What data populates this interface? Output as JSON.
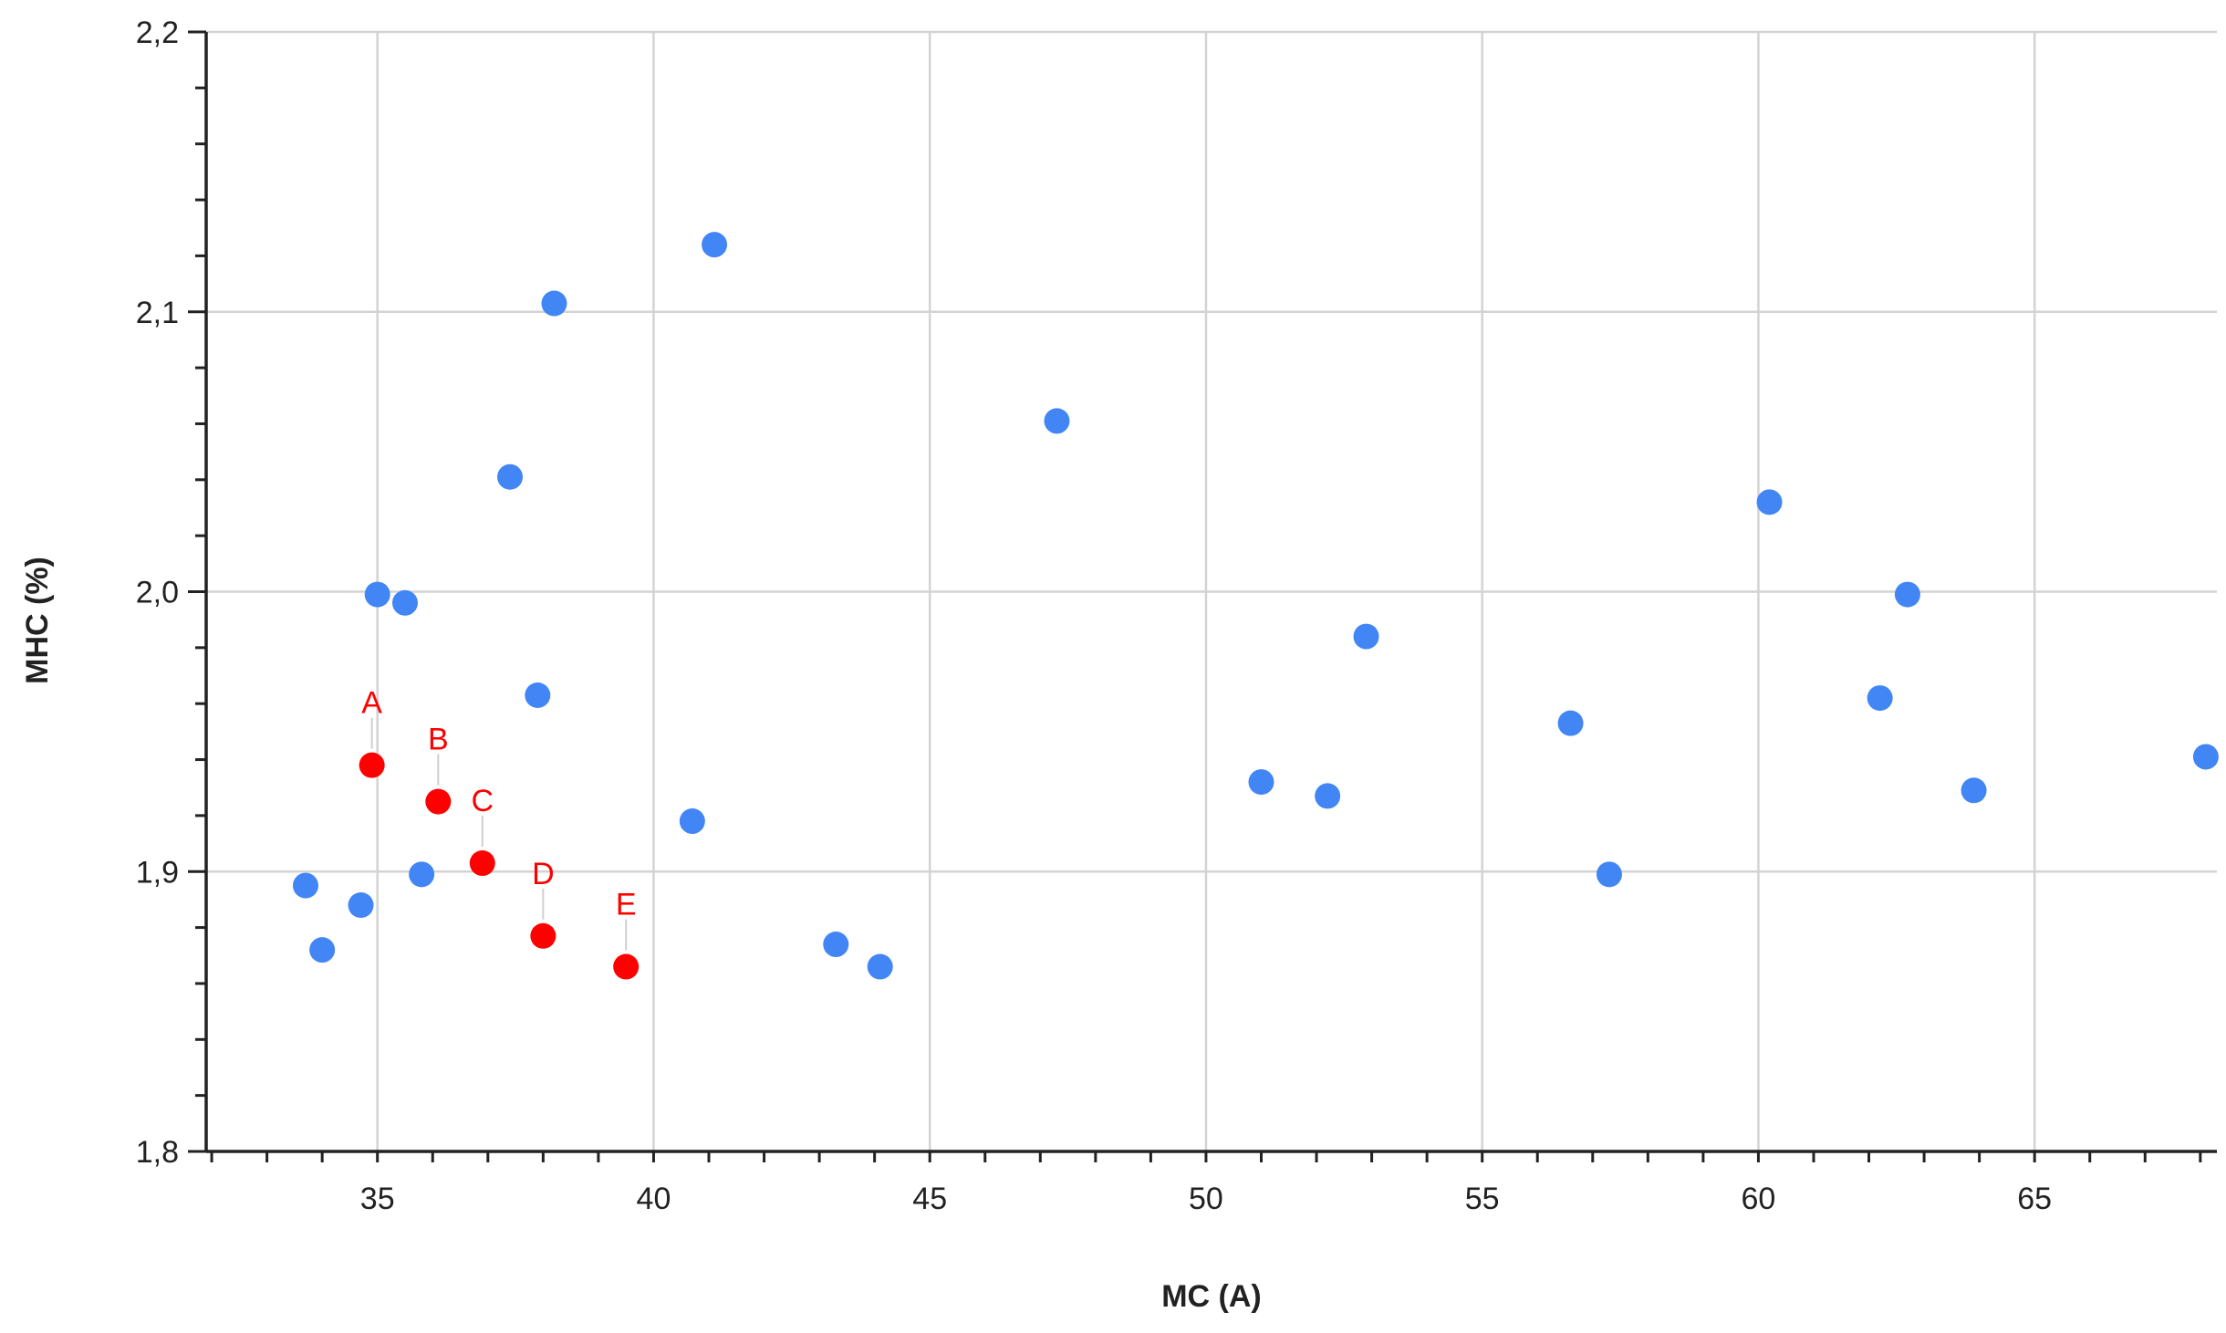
{
  "chart_data": {
    "type": "scatter",
    "xlabel": "MC (A)",
    "ylabel": "MHC (%)",
    "xlim": [
      31.9,
      68.3
    ],
    "ylim": [
      1.8,
      2.2
    ],
    "x_ticks": [
      35,
      40,
      45,
      50,
      55,
      60,
      65
    ],
    "y_ticks": [
      1.8,
      1.9,
      2.0,
      2.1,
      2.2
    ],
    "y_tick_labels": [
      "1,8",
      "1,9",
      "2,0",
      "2,1",
      "2,2"
    ],
    "grid": true,
    "colors": {
      "default": "#4285f4",
      "highlighted": "#ff0000"
    },
    "series": [
      {
        "color": "#4285f4",
        "points": [
          {
            "x": 33.7,
            "y": 1.895
          },
          {
            "x": 34.0,
            "y": 1.872
          },
          {
            "x": 34.7,
            "y": 1.888
          },
          {
            "x": 35.0,
            "y": 1.999
          },
          {
            "x": 35.5,
            "y": 1.996
          },
          {
            "x": 35.8,
            "y": 1.899
          },
          {
            "x": 37.4,
            "y": 2.041
          },
          {
            "x": 37.9,
            "y": 1.963
          },
          {
            "x": 38.2,
            "y": 2.103
          },
          {
            "x": 40.7,
            "y": 1.918
          },
          {
            "x": 41.1,
            "y": 2.124
          },
          {
            "x": 43.3,
            "y": 1.874
          },
          {
            "x": 44.1,
            "y": 1.866
          },
          {
            "x": 47.3,
            "y": 2.061
          },
          {
            "x": 51.0,
            "y": 1.932
          },
          {
            "x": 52.2,
            "y": 1.927
          },
          {
            "x": 52.9,
            "y": 1.984
          },
          {
            "x": 56.6,
            "y": 1.953
          },
          {
            "x": 57.3,
            "y": 1.899
          },
          {
            "x": 60.2,
            "y": 2.032
          },
          {
            "x": 62.2,
            "y": 1.962
          },
          {
            "x": 62.7,
            "y": 1.999
          },
          {
            "x": 63.9,
            "y": 1.929
          },
          {
            "x": 68.1,
            "y": 1.941
          }
        ]
      },
      {
        "color": "#ff0000",
        "points": [
          {
            "x": 34.9,
            "y": 1.938,
            "label": "A"
          },
          {
            "x": 36.1,
            "y": 1.925,
            "label": "B"
          },
          {
            "x": 36.9,
            "y": 1.903,
            "label": "C"
          },
          {
            "x": 38.0,
            "y": 1.877,
            "label": "D"
          },
          {
            "x": 39.5,
            "y": 1.866,
            "label": "E"
          }
        ]
      }
    ]
  }
}
